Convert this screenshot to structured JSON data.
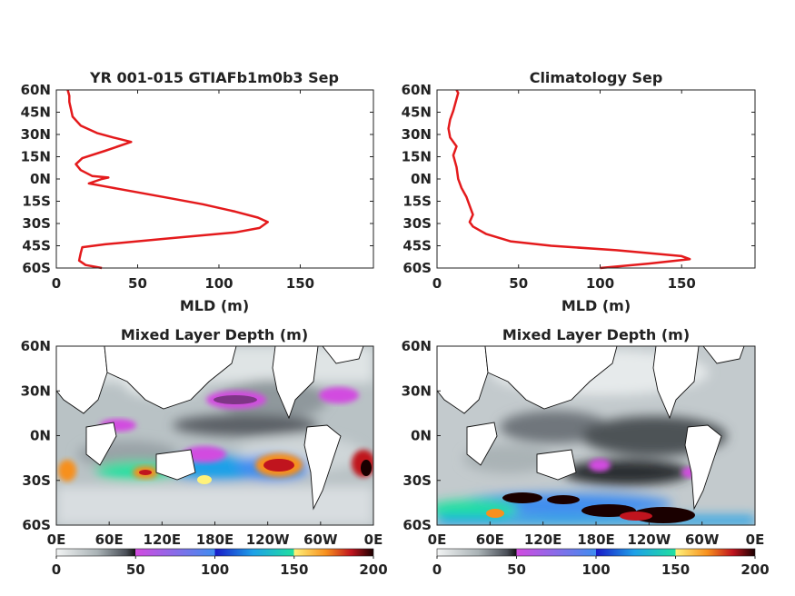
{
  "chart_data": [
    {
      "type": "line",
      "title": "YR 001-015 GTIAFb1m0b3 Sep",
      "xlabel": "MLD (m)",
      "ylabel": "",
      "xlim": [
        0,
        195
      ],
      "ylim": [
        -60,
        60
      ],
      "x_ticks": [
        "0",
        "50",
        "100",
        "150"
      ],
      "y_ticks": [
        "60N",
        "45N",
        "30N",
        "15N",
        "0N",
        "15S",
        "30S",
        "45S",
        "60S"
      ],
      "series": [
        {
          "color": "#e41a1c",
          "points": [
            [
              28,
              -60
            ],
            [
              18,
              -58
            ],
            [
              14,
              -55
            ],
            [
              15,
              -50
            ],
            [
              16,
              -46
            ],
            [
              30,
              -44
            ],
            [
              70,
              -40
            ],
            [
              110,
              -36
            ],
            [
              125,
              -33
            ],
            [
              130,
              -29
            ],
            [
              124,
              -26
            ],
            [
              110,
              -22
            ],
            [
              90,
              -17
            ],
            [
              70,
              -13
            ],
            [
              50,
              -9
            ],
            [
              30,
              -5
            ],
            [
              20,
              -3
            ],
            [
              28,
              0
            ],
            [
              32,
              1
            ],
            [
              22,
              2
            ],
            [
              15,
              6
            ],
            [
              12,
              10
            ],
            [
              16,
              14
            ],
            [
              30,
              19
            ],
            [
              46,
              25
            ],
            [
              35,
              28
            ],
            [
              25,
              31
            ],
            [
              15,
              36
            ],
            [
              10,
              42
            ],
            [
              9,
              47
            ],
            [
              8,
              52
            ],
            [
              8,
              56
            ],
            [
              7,
              60
            ]
          ]
        }
      ]
    },
    {
      "type": "line",
      "title": "Climatology Sep",
      "xlabel": "MLD (m)",
      "ylabel": "",
      "xlim": [
        0,
        195
      ],
      "ylim": [
        -60,
        60
      ],
      "x_ticks": [
        "0",
        "50",
        "100",
        "150"
      ],
      "y_ticks": [
        "60N",
        "45N",
        "30N",
        "15N",
        "0N",
        "15S",
        "30S",
        "45S",
        "60S"
      ],
      "series": [
        {
          "color": "#e41a1c",
          "points": [
            [
              100,
              -60
            ],
            [
              130,
              -57
            ],
            [
              155,
              -54
            ],
            [
              150,
              -52
            ],
            [
              110,
              -48
            ],
            [
              70,
              -45
            ],
            [
              45,
              -42
            ],
            [
              30,
              -37
            ],
            [
              22,
              -32
            ],
            [
              20,
              -29
            ],
            [
              22,
              -24
            ],
            [
              20,
              -18
            ],
            [
              18,
              -12
            ],
            [
              15,
              -6
            ],
            [
              13,
              0
            ],
            [
              12,
              8
            ],
            [
              10,
              16
            ],
            [
              12,
              22
            ],
            [
              8,
              28
            ],
            [
              7,
              34
            ],
            [
              8,
              40
            ],
            [
              10,
              46
            ],
            [
              12,
              54
            ],
            [
              13,
              58
            ],
            [
              12,
              60
            ]
          ]
        }
      ]
    },
    {
      "type": "heatmap",
      "title": "Mixed Layer Depth (m)",
      "x_ticks": [
        "0E",
        "60E",
        "120E",
        "180E",
        "120W",
        "60W",
        "0E"
      ],
      "y_ticks": [
        "60N",
        "30N",
        "0N",
        "30S",
        "60S"
      ],
      "colorbar": {
        "min": 0,
        "max": 200,
        "ticks": [
          "0",
          "50",
          "100",
          "150",
          "200"
        ]
      }
    },
    {
      "type": "heatmap",
      "title": "Mixed Layer Depth (m)",
      "x_ticks": [
        "0E",
        "60E",
        "120E",
        "180E",
        "120W",
        "60W",
        "0E"
      ],
      "y_ticks": [
        "60N",
        "30N",
        "0N",
        "30S",
        "60S"
      ],
      "colorbar": {
        "min": 0,
        "max": 200,
        "ticks": [
          "0",
          "50",
          "100",
          "150",
          "200"
        ]
      }
    }
  ]
}
